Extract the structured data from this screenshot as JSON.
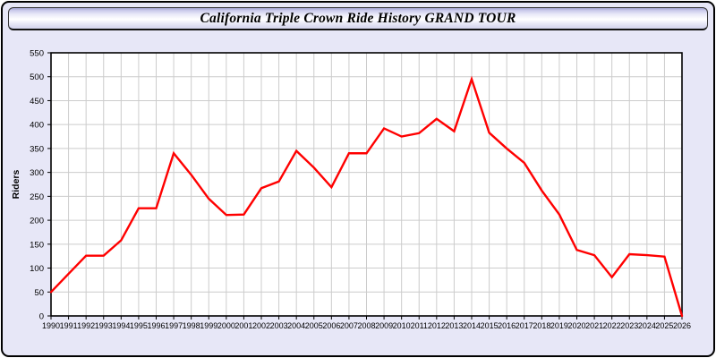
{
  "window": {
    "title": "California Triple Crown Ride History GRAND TOUR"
  },
  "chart_data": {
    "type": "line",
    "title": "California Triple Crown Ride History GRAND TOUR",
    "xlabel": "",
    "ylabel": "Riders",
    "x": [
      1990,
      1991,
      1992,
      1993,
      1994,
      1995,
      1996,
      1997,
      1998,
      1999,
      2000,
      2001,
      2002,
      2003,
      2004,
      2005,
      2006,
      2007,
      2008,
      2009,
      2010,
      2011,
      2012,
      2013,
      2014,
      2015,
      2016,
      2017,
      2018,
      2019,
      2020,
      2021,
      2022,
      2023,
      2024,
      2025,
      2026
    ],
    "series": [
      {
        "name": "Riders",
        "values": [
          50,
          88,
          126,
          126,
          158,
          225,
          225,
          340,
          295,
          245,
          211,
          212,
          267,
          281,
          345,
          310,
          269,
          340,
          340,
          392,
          375,
          382,
          412,
          386,
          495,
          383,
          350,
          320,
          262,
          212,
          138,
          127,
          81,
          129,
          127,
          124,
          0
        ]
      }
    ],
    "ylim": [
      0,
      550
    ],
    "ytick_step": 50,
    "xlim": [
      1990,
      2026
    ],
    "grid": true,
    "legend": "none",
    "colors": {
      "line": "#ff0000",
      "grid": "#cccccc",
      "plot_background": "#ffffff",
      "frame_background": "#e7e7f7",
      "axis": "#000000",
      "tick_label": "#000000"
    }
  }
}
